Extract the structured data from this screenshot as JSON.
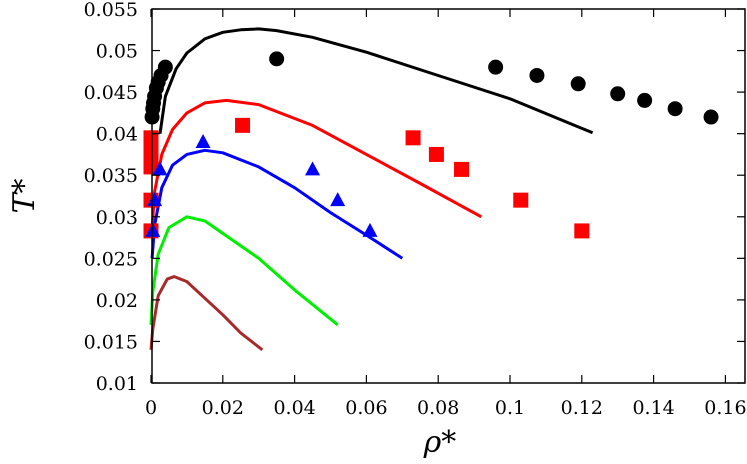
{
  "chart_data": {
    "type": "scatter",
    "title": "",
    "xlabel": "ρ*",
    "ylabel": "T*",
    "xlim": [
      0,
      0.1655
    ],
    "ylim": [
      0.01,
      0.055
    ],
    "grid": false,
    "xticks": [
      "0",
      "0.02",
      "0.04",
      "0.06",
      "0.08",
      "0.1",
      "0.12",
      "0.14",
      "0.16"
    ],
    "yticks": [
      "0.01",
      "0.015",
      "0.02",
      "0.025",
      "0.03",
      "0.035",
      "0.04",
      "0.045",
      "0.05",
      "0.055"
    ],
    "xtick_values": [
      0,
      0.02,
      0.04,
      0.06,
      0.08,
      0.1,
      0.12,
      0.14,
      0.16
    ],
    "ytick_values": [
      0.01,
      0.015,
      0.02,
      0.025,
      0.03,
      0.035,
      0.04,
      0.045,
      0.05,
      0.055
    ],
    "lines": [
      {
        "color": "#000000",
        "x": [
          0.0025,
          0.004,
          0.007,
          0.01,
          0.015,
          0.02,
          0.025,
          0.03,
          0.035,
          0.045,
          0.06,
          0.08,
          0.1,
          0.123
        ],
        "y": [
          0.04,
          0.0445,
          0.0478,
          0.0497,
          0.0514,
          0.0522,
          0.0525,
          0.0526,
          0.0524,
          0.0516,
          0.0498,
          0.047,
          0.0442,
          0.0401
        ]
      },
      {
        "color": "#ff0000",
        "x": [
          0.0003,
          0.001,
          0.003,
          0.006,
          0.01,
          0.015,
          0.021,
          0.03,
          0.045,
          0.06,
          0.075,
          0.092
        ],
        "y": [
          0.0285,
          0.033,
          0.0375,
          0.0405,
          0.0425,
          0.0437,
          0.044,
          0.0435,
          0.041,
          0.0375,
          0.034,
          0.03
        ]
      },
      {
        "color": "#0000ff",
        "x": [
          0.0003,
          0.001,
          0.003,
          0.006,
          0.01,
          0.015,
          0.02,
          0.03,
          0.04,
          0.05,
          0.06,
          0.07
        ],
        "y": [
          0.025,
          0.029,
          0.0335,
          0.0362,
          0.0375,
          0.038,
          0.0377,
          0.036,
          0.0335,
          0.0305,
          0.0278,
          0.025
        ]
      },
      {
        "color": "#00ee00",
        "x": [
          0,
          0.0005,
          0.002,
          0.005,
          0.01,
          0.015,
          0.02,
          0.03,
          0.04,
          0.052
        ],
        "y": [
          0.017,
          0.021,
          0.0255,
          0.0287,
          0.03,
          0.0295,
          0.028,
          0.025,
          0.0212,
          0.017
        ]
      },
      {
        "color": "#a52a2a",
        "x": [
          0,
          0.0005,
          0.002,
          0.0045,
          0.0065,
          0.01,
          0.015,
          0.02,
          0.025,
          0.031
        ],
        "y": [
          0.014,
          0.0165,
          0.0205,
          0.0225,
          0.0228,
          0.0222,
          0.0202,
          0.0182,
          0.016,
          0.014
        ]
      }
    ],
    "markers": [
      {
        "shape": "circle",
        "color": "#000000",
        "x": [
          0.0003,
          0.0005,
          0.0007,
          0.001,
          0.0015,
          0.002,
          0.0028,
          0.004,
          0.035,
          0.096,
          0.1075,
          0.119,
          0.13,
          0.1375,
          0.146,
          0.156
        ],
        "y": [
          0.042,
          0.043,
          0.0437,
          0.0445,
          0.0455,
          0.0462,
          0.047,
          0.048,
          0.049,
          0.048,
          0.047,
          0.046,
          0.0448,
          0.044,
          0.043,
          0.042
        ]
      },
      {
        "shape": "square",
        "color": "#ff0000",
        "x": [
          0,
          0,
          0,
          0,
          0,
          0,
          0.0255,
          0.073,
          0.0795,
          0.0865,
          0.103,
          0.12
        ],
        "y": [
          0.0395,
          0.038,
          0.0373,
          0.036,
          0.032,
          0.0283,
          0.041,
          0.0395,
          0.0375,
          0.0357,
          0.032,
          0.0283
        ]
      },
      {
        "shape": "triangle",
        "color": "#0000ff",
        "x": [
          0.0025,
          0.001,
          0.0005,
          0.0145,
          0.045,
          0.052,
          0.061
        ],
        "y": [
          0.0357,
          0.032,
          0.0283,
          0.039,
          0.0357,
          0.032,
          0.0283
        ]
      }
    ]
  }
}
